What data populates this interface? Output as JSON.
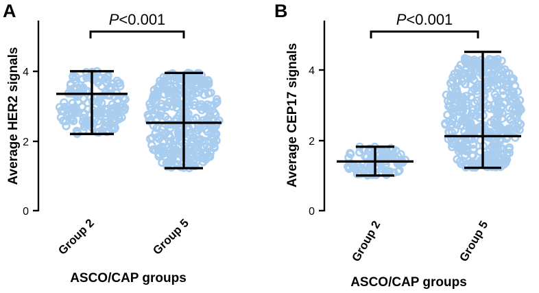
{
  "chart_data": [
    {
      "type": "scatter",
      "panel": "A",
      "ylabel": "Average HER2 signals",
      "xlabel": "ASCO/CAP groups",
      "categories": [
        "Group 2",
        "Group 5"
      ],
      "ylim": [
        0,
        5.4
      ],
      "yticks": [
        0,
        2,
        4
      ],
      "annotation": {
        "prefix": "P",
        "text": "<0.001"
      },
      "marker_color": "#a9cdef",
      "groups": [
        {
          "name": "Group 2",
          "mean": 3.35,
          "upper": 4.0,
          "lower": 2.2,
          "min": 2.2,
          "max": 4.0
        },
        {
          "name": "Group 5",
          "mean": 2.52,
          "upper": 3.95,
          "lower": 1.22,
          "min": 1.22,
          "max": 3.95
        }
      ]
    },
    {
      "type": "scatter",
      "panel": "B",
      "ylabel": "Average CEP17 signals",
      "xlabel": "ASCO/CAP groups",
      "categories": [
        "Group 2",
        "Group 5"
      ],
      "ylim": [
        0,
        5.4
      ],
      "yticks": [
        0,
        2,
        4
      ],
      "annotation": {
        "prefix": "P",
        "text": "<0.001"
      },
      "marker_color": "#a9cdef",
      "groups": [
        {
          "name": "Group 2",
          "mean": 1.4,
          "upper": 1.82,
          "lower": 1.0,
          "min": 1.0,
          "max": 1.82
        },
        {
          "name": "Group 5",
          "mean": 2.12,
          "upper": 4.52,
          "lower": 1.22,
          "min": 1.22,
          "max": 4.35
        }
      ]
    }
  ]
}
